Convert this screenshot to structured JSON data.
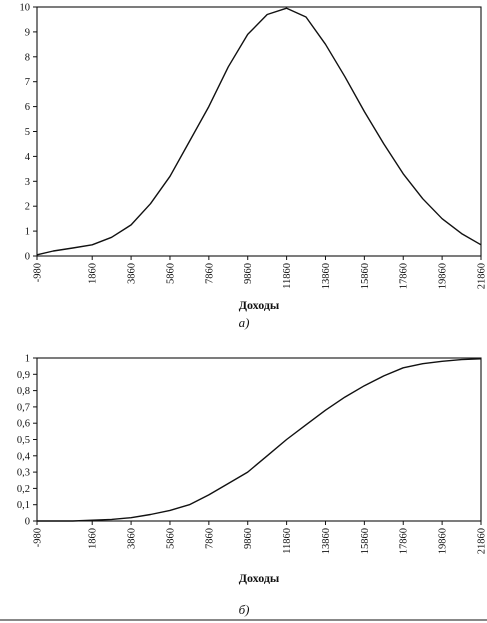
{
  "chart_data": [
    {
      "type": "line",
      "caption": "а)",
      "xlabel": "Доходы",
      "ylabel": "",
      "x_tick_labels": [
        "-980",
        "1860",
        "3860",
        "5860",
        "7860",
        "9860",
        "11860",
        "13860",
        "15860",
        "17860",
        "19860",
        "21860"
      ],
      "y_tick_labels": [
        "0",
        "1",
        "2",
        "3",
        "4",
        "5",
        "6",
        "7",
        "8",
        "9",
        "10"
      ],
      "xlim": [
        -980,
        21860
      ],
      "ylim": [
        0,
        10
      ],
      "grid": false,
      "series": [
        {
          "x": [
            -980,
            -140,
            860,
            1860,
            2860,
            3860,
            4860,
            5860,
            6860,
            7860,
            8860,
            9860,
            10860,
            11860,
            12860,
            13860,
            14860,
            15860,
            16860,
            17860,
            18860,
            19860,
            20860,
            21860
          ],
          "values": [
            0.05,
            0.2,
            0.32,
            0.45,
            0.75,
            1.25,
            2.1,
            3.2,
            4.6,
            6.0,
            7.6,
            8.9,
            9.7,
            9.95,
            9.6,
            8.5,
            7.2,
            5.8,
            4.5,
            3.3,
            2.3,
            1.5,
            0.9,
            0.45
          ]
        }
      ]
    },
    {
      "type": "line",
      "caption": "б)",
      "xlabel": "Доходы",
      "ylabel": "",
      "x_tick_labels": [
        "-980",
        "1860",
        "3860",
        "5860",
        "7860",
        "9860",
        "11860",
        "13860",
        "15860",
        "17860",
        "19860",
        "21860"
      ],
      "y_tick_labels": [
        "0",
        "0,1",
        "0,2",
        "0,3",
        "0,4",
        "0,5",
        "0,6",
        "0,7",
        "0,8",
        "0,9",
        "1"
      ],
      "xlim": [
        -980,
        21860
      ],
      "ylim": [
        0,
        1
      ],
      "grid": false,
      "series": [
        {
          "x": [
            -980,
            860,
            1860,
            2860,
            3860,
            4860,
            5860,
            6860,
            7860,
            8860,
            9860,
            10860,
            11860,
            12860,
            13860,
            14860,
            15860,
            16860,
            17860,
            18860,
            19860,
            20860,
            21860
          ],
          "values": [
            0.0,
            0.0,
            0.005,
            0.01,
            0.02,
            0.04,
            0.065,
            0.1,
            0.16,
            0.23,
            0.3,
            0.4,
            0.5,
            0.59,
            0.68,
            0.76,
            0.83,
            0.89,
            0.94,
            0.965,
            0.98,
            0.99,
            0.995
          ]
        }
      ]
    }
  ]
}
